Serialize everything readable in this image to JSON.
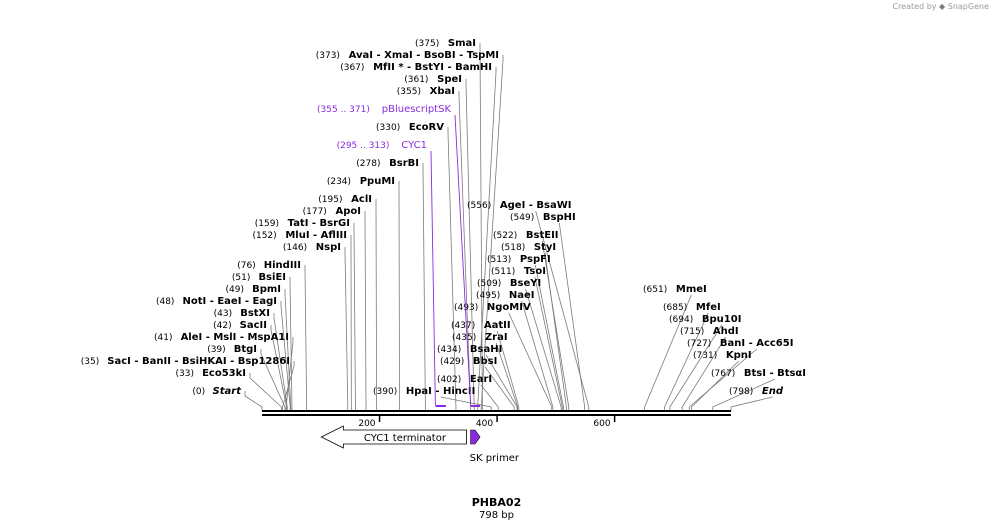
{
  "brand": {
    "prefix": "Created by",
    "name": "SnapGene"
  },
  "plasmid": {
    "name": "PHBA02",
    "length_label": "798 bp",
    "length": 798
  },
  "colors": {
    "feature": "#8a2be2",
    "site_line": "#7a7a7a",
    "backbone": "#000000"
  },
  "ruler": {
    "ticks": [
      {
        "pos": 200,
        "label": "200"
      },
      {
        "pos": 400,
        "label": "400"
      },
      {
        "pos": 600,
        "label": "600"
      }
    ]
  },
  "features": [
    {
      "name": "CYC1 terminator",
      "start": 101,
      "end": 348,
      "direction": "reverse",
      "shape": "open-arrow"
    },
    {
      "name": "SK primer",
      "start": 355,
      "end": 371,
      "direction": "forward",
      "shape": "filled-arrow"
    }
  ],
  "annotations": [
    {
      "label": "pBluescriptSK",
      "range": "(355 .. 371)",
      "start": 355,
      "end": 371
    },
    {
      "label": "CYC1",
      "range": "(295 .. 313)",
      "start": 295,
      "end": 313
    }
  ],
  "labels": [
    {
      "pos": "(375)",
      "bp": 375,
      "text": "SmaI"
    },
    {
      "pos": "(373)",
      "bp": 373,
      "text": "AvaI   - XmaI   - BsoBI   - TspMI"
    },
    {
      "pos": "(367)",
      "bp": 367,
      "text": "MfII * - BstYI   - BamHI"
    },
    {
      "pos": "(361)",
      "bp": 361,
      "text": "SpeI"
    },
    {
      "pos": "(355)",
      "bp": 355,
      "text": "XbaI"
    },
    {
      "pos": "(330)",
      "bp": 330,
      "text": "EcoRV"
    },
    {
      "pos": "(278)",
      "bp": 278,
      "text": "BsrBI"
    },
    {
      "pos": "(234)",
      "bp": 234,
      "text": "PpuMI"
    },
    {
      "pos": "(195)",
      "bp": 195,
      "text": "AclI"
    },
    {
      "pos": "(177)",
      "bp": 177,
      "text": "ApoI"
    },
    {
      "pos": "(159)",
      "bp": 159,
      "text": "TatI   - BsrGI"
    },
    {
      "pos": "(152)",
      "bp": 152,
      "text": "MluI   - AflIII"
    },
    {
      "pos": "(146)",
      "bp": 146,
      "text": "NspI"
    },
    {
      "pos": "(76)",
      "bp": 76,
      "text": "HindIII"
    },
    {
      "pos": "(51)",
      "bp": 51,
      "text": "BsiEI"
    },
    {
      "pos": "(49)",
      "bp": 49,
      "text": "BpmI"
    },
    {
      "pos": "(48)",
      "bp": 48,
      "text": "NotI   - EaeI   - EagI"
    },
    {
      "pos": "(43)",
      "bp": 43,
      "text": "BstXI"
    },
    {
      "pos": "(42)",
      "bp": 42,
      "text": "SacII"
    },
    {
      "pos": "(41)",
      "bp": 41,
      "text": "AleI   - MslI   - MspA1I"
    },
    {
      "pos": "(39)",
      "bp": 39,
      "text": "BtgI"
    },
    {
      "pos": "(35)",
      "bp": 35,
      "text": "SacI   - BanII   - BsiHKAI   - Bsp1286I"
    },
    {
      "pos": "(33)",
      "bp": 33,
      "text": "Eco53kI"
    },
    {
      "pos": "(0)",
      "bp": 0,
      "text": "Start",
      "italic": true
    },
    {
      "pos": "(390)",
      "bp": 390,
      "text": "HpaI   - HincII"
    },
    {
      "pos": "(402)",
      "bp": 402,
      "text": "EarI"
    },
    {
      "pos": "(429)",
      "bp": 429,
      "text": "BbsI"
    },
    {
      "pos": "(434)",
      "bp": 434,
      "text": "BsaHI"
    },
    {
      "pos": "(435)",
      "bp": 435,
      "text": "ZraI"
    },
    {
      "pos": "(437)",
      "bp": 437,
      "text": "AatII"
    },
    {
      "pos": "(493)",
      "bp": 493,
      "text": "NgoMIV"
    },
    {
      "pos": "(495)",
      "bp": 495,
      "text": "NaeI"
    },
    {
      "pos": "(509)",
      "bp": 509,
      "text": "BseYI"
    },
    {
      "pos": "(511)",
      "bp": 511,
      "text": "TsoI"
    },
    {
      "pos": "(513)",
      "bp": 513,
      "text": "PspFI"
    },
    {
      "pos": "(518)",
      "bp": 518,
      "text": "StyI"
    },
    {
      "pos": "(522)",
      "bp": 522,
      "text": "BstEII"
    },
    {
      "pos": "(549)",
      "bp": 549,
      "text": "BspHI"
    },
    {
      "pos": "(556)",
      "bp": 556,
      "text": "AgeI   - BsaWI"
    },
    {
      "pos": "(651)",
      "bp": 651,
      "text": "MmeI"
    },
    {
      "pos": "(685)",
      "bp": 685,
      "text": "MfeI"
    },
    {
      "pos": "(694)",
      "bp": 694,
      "text": "Bpu10I"
    },
    {
      "pos": "(715)",
      "bp": 715,
      "text": "AhdI"
    },
    {
      "pos": "(727)",
      "bp": 727,
      "text": "BanI   - Acc65I"
    },
    {
      "pos": "(731)",
      "bp": 731,
      "text": "KpnI"
    },
    {
      "pos": "(767)",
      "bp": 767,
      "text": "BtsI   - BtsαI"
    },
    {
      "pos": "(798)",
      "bp": 798,
      "text": "End",
      "italic": true
    }
  ]
}
